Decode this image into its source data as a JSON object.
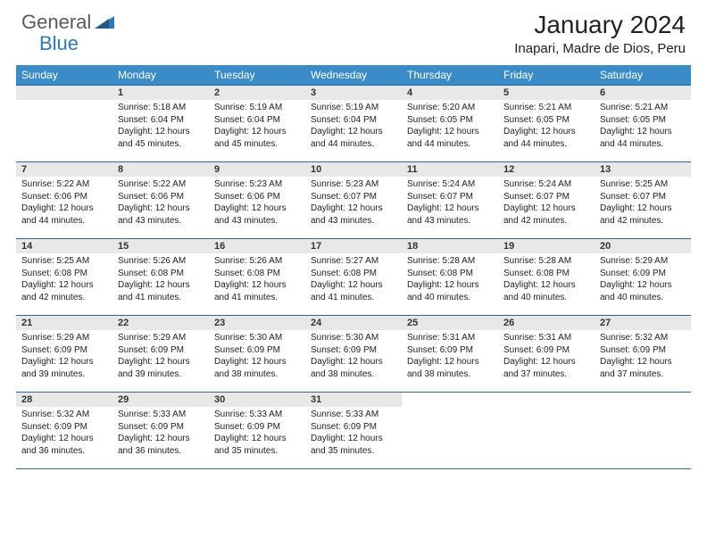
{
  "brand": {
    "part1": "General",
    "part2": "Blue"
  },
  "title": "January 2024",
  "location": "Inapari, Madre de Dios, Peru",
  "colors": {
    "header_bg": "#3b8bc8",
    "header_text": "#ffffff",
    "daynum_bg": "#e8e8e8",
    "border": "#2a6a9a",
    "logo_gray": "#5a5a5a",
    "logo_blue": "#2a7ab8"
  },
  "day_labels": [
    "Sunday",
    "Monday",
    "Tuesday",
    "Wednesday",
    "Thursday",
    "Friday",
    "Saturday"
  ],
  "weeks": [
    [
      null,
      {
        "n": "1",
        "sr": "5:18 AM",
        "ss": "6:04 PM",
        "dl": "12 hours and 45 minutes."
      },
      {
        "n": "2",
        "sr": "5:19 AM",
        "ss": "6:04 PM",
        "dl": "12 hours and 45 minutes."
      },
      {
        "n": "3",
        "sr": "5:19 AM",
        "ss": "6:04 PM",
        "dl": "12 hours and 44 minutes."
      },
      {
        "n": "4",
        "sr": "5:20 AM",
        "ss": "6:05 PM",
        "dl": "12 hours and 44 minutes."
      },
      {
        "n": "5",
        "sr": "5:21 AM",
        "ss": "6:05 PM",
        "dl": "12 hours and 44 minutes."
      },
      {
        "n": "6",
        "sr": "5:21 AM",
        "ss": "6:05 PM",
        "dl": "12 hours and 44 minutes."
      }
    ],
    [
      {
        "n": "7",
        "sr": "5:22 AM",
        "ss": "6:06 PM",
        "dl": "12 hours and 44 minutes."
      },
      {
        "n": "8",
        "sr": "5:22 AM",
        "ss": "6:06 PM",
        "dl": "12 hours and 43 minutes."
      },
      {
        "n": "9",
        "sr": "5:23 AM",
        "ss": "6:06 PM",
        "dl": "12 hours and 43 minutes."
      },
      {
        "n": "10",
        "sr": "5:23 AM",
        "ss": "6:07 PM",
        "dl": "12 hours and 43 minutes."
      },
      {
        "n": "11",
        "sr": "5:24 AM",
        "ss": "6:07 PM",
        "dl": "12 hours and 43 minutes."
      },
      {
        "n": "12",
        "sr": "5:24 AM",
        "ss": "6:07 PM",
        "dl": "12 hours and 42 minutes."
      },
      {
        "n": "13",
        "sr": "5:25 AM",
        "ss": "6:07 PM",
        "dl": "12 hours and 42 minutes."
      }
    ],
    [
      {
        "n": "14",
        "sr": "5:25 AM",
        "ss": "6:08 PM",
        "dl": "12 hours and 42 minutes."
      },
      {
        "n": "15",
        "sr": "5:26 AM",
        "ss": "6:08 PM",
        "dl": "12 hours and 41 minutes."
      },
      {
        "n": "16",
        "sr": "5:26 AM",
        "ss": "6:08 PM",
        "dl": "12 hours and 41 minutes."
      },
      {
        "n": "17",
        "sr": "5:27 AM",
        "ss": "6:08 PM",
        "dl": "12 hours and 41 minutes."
      },
      {
        "n": "18",
        "sr": "5:28 AM",
        "ss": "6:08 PM",
        "dl": "12 hours and 40 minutes."
      },
      {
        "n": "19",
        "sr": "5:28 AM",
        "ss": "6:08 PM",
        "dl": "12 hours and 40 minutes."
      },
      {
        "n": "20",
        "sr": "5:29 AM",
        "ss": "6:09 PM",
        "dl": "12 hours and 40 minutes."
      }
    ],
    [
      {
        "n": "21",
        "sr": "5:29 AM",
        "ss": "6:09 PM",
        "dl": "12 hours and 39 minutes."
      },
      {
        "n": "22",
        "sr": "5:29 AM",
        "ss": "6:09 PM",
        "dl": "12 hours and 39 minutes."
      },
      {
        "n": "23",
        "sr": "5:30 AM",
        "ss": "6:09 PM",
        "dl": "12 hours and 38 minutes."
      },
      {
        "n": "24",
        "sr": "5:30 AM",
        "ss": "6:09 PM",
        "dl": "12 hours and 38 minutes."
      },
      {
        "n": "25",
        "sr": "5:31 AM",
        "ss": "6:09 PM",
        "dl": "12 hours and 38 minutes."
      },
      {
        "n": "26",
        "sr": "5:31 AM",
        "ss": "6:09 PM",
        "dl": "12 hours and 37 minutes."
      },
      {
        "n": "27",
        "sr": "5:32 AM",
        "ss": "6:09 PM",
        "dl": "12 hours and 37 minutes."
      }
    ],
    [
      {
        "n": "28",
        "sr": "5:32 AM",
        "ss": "6:09 PM",
        "dl": "12 hours and 36 minutes."
      },
      {
        "n": "29",
        "sr": "5:33 AM",
        "ss": "6:09 PM",
        "dl": "12 hours and 36 minutes."
      },
      {
        "n": "30",
        "sr": "5:33 AM",
        "ss": "6:09 PM",
        "dl": "12 hours and 35 minutes."
      },
      {
        "n": "31",
        "sr": "5:33 AM",
        "ss": "6:09 PM",
        "dl": "12 hours and 35 minutes."
      },
      null,
      null,
      null
    ]
  ],
  "labels": {
    "sunrise": "Sunrise:",
    "sunset": "Sunset:",
    "daylight": "Daylight:"
  }
}
